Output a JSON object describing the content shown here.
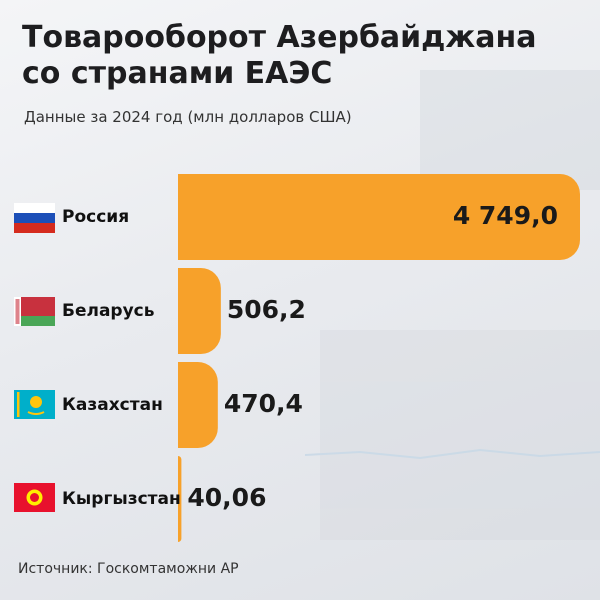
{
  "chart_data": {
    "type": "hbar",
    "title": "Товарооборот Азербайджана со странами ЕАЭС",
    "subtitle": "Данные за 2024 год (млн долларов США)",
    "source": "Источник: Госкомтаможни АР",
    "categories": [
      "Россия",
      "Беларусь",
      "Казахстан",
      "Кыргызстан"
    ],
    "values": [
      4749.0,
      506.2,
      470.4,
      40.06
    ],
    "value_labels": [
      "4 749,0",
      "506,2",
      "470,4",
      "40,06"
    ],
    "color": "#f7a12a"
  }
}
